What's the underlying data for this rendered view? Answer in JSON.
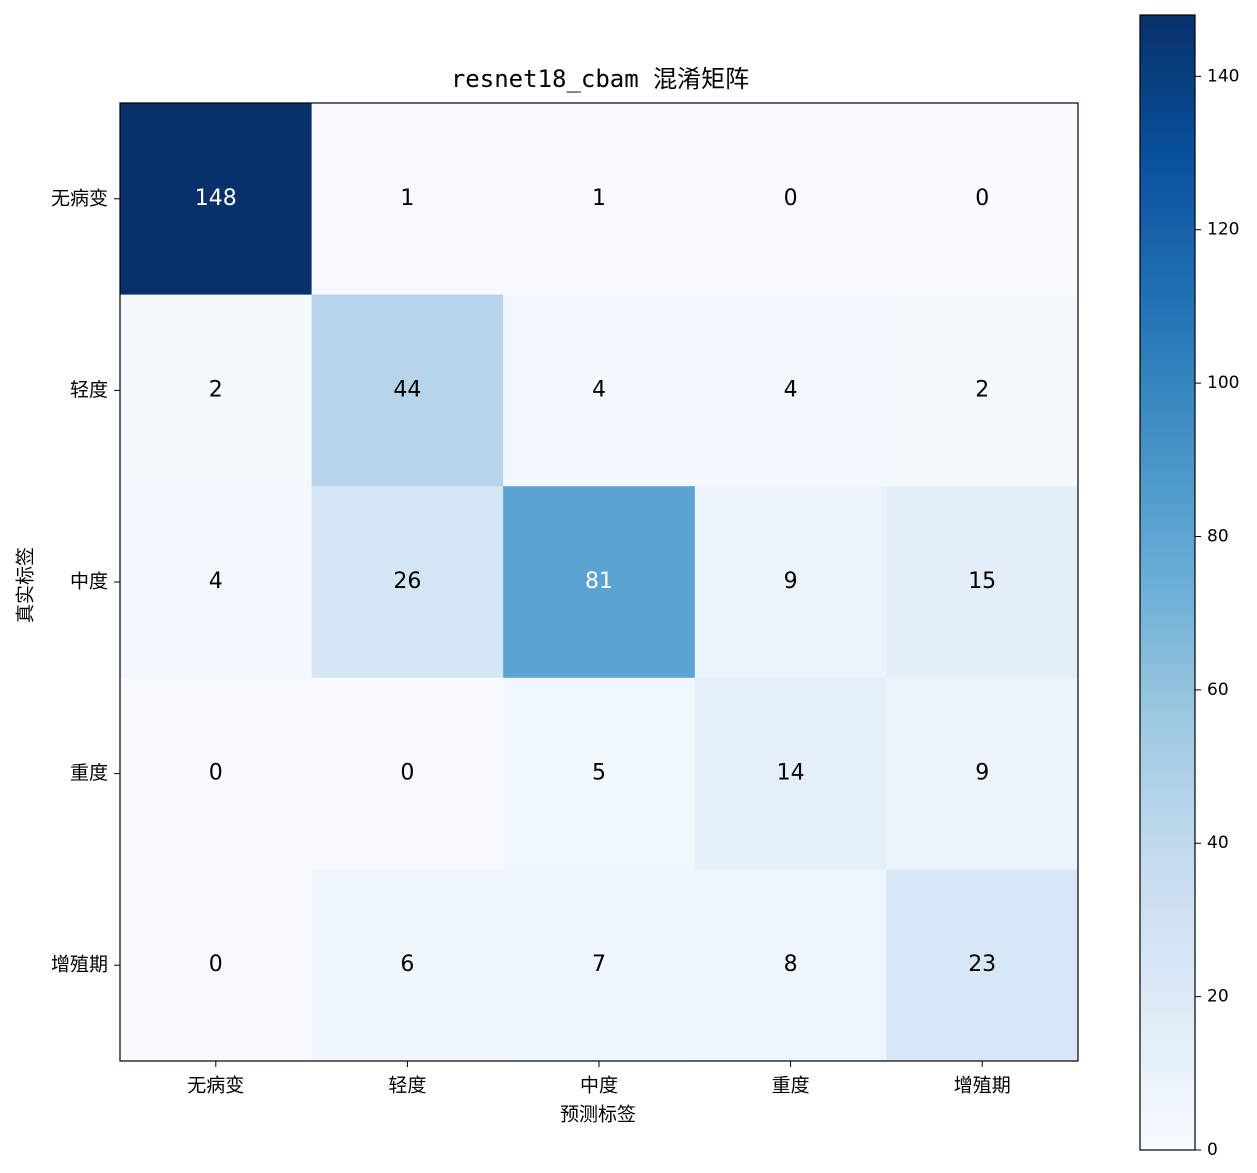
{
  "chart_data": {
    "type": "heatmap",
    "title": "resnet18_cbam 混淆矩阵",
    "xlabel": "预测标签",
    "ylabel": "真实标签",
    "x_categories": [
      "无病变",
      "轻度",
      "中度",
      "重度",
      "增殖期"
    ],
    "y_categories": [
      "无病变",
      "轻度",
      "中度",
      "重度",
      "增殖期"
    ],
    "values": [
      [
        148,
        1,
        1,
        0,
        0
      ],
      [
        2,
        44,
        4,
        4,
        2
      ],
      [
        4,
        26,
        81,
        9,
        15
      ],
      [
        0,
        0,
        5,
        14,
        9
      ],
      [
        0,
        6,
        7,
        8,
        23
      ]
    ],
    "colormap": [
      "#f7fbff",
      "#deebf7",
      "#c6dbef",
      "#9ecae1",
      "#6baed6",
      "#4292c6",
      "#2171b5",
      "#08519c",
      "#08306b"
    ],
    "zlim": [
      0,
      148
    ],
    "zticks": [
      0,
      20,
      40,
      60,
      80,
      100,
      120,
      140
    ]
  }
}
